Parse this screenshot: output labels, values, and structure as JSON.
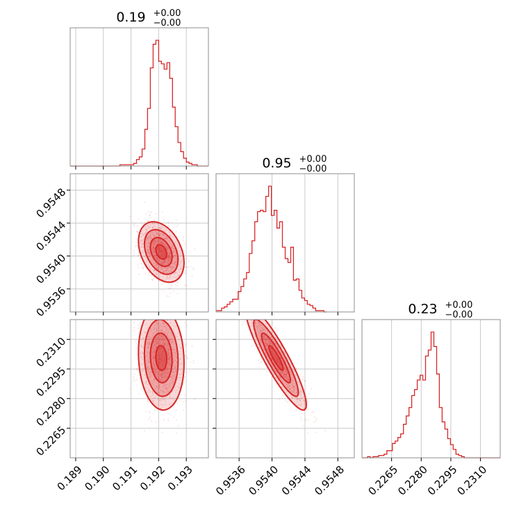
{
  "chart_data": {
    "type": "corner",
    "color": "#d62728",
    "parameters": [
      {
        "title_main": "0.19",
        "title_plus": "+0.00",
        "title_minus": "−0.00",
        "range": [
          0.1888,
          0.1938
        ],
        "ticks": [
          "0.189",
          "0.190",
          "0.191",
          "0.192",
          "0.193"
        ],
        "mean": 0.1921,
        "sd": 0.0004,
        "hist_start": 0.1888,
        "hist_step": 0.0001,
        "hist": [
          0,
          0,
          0,
          0,
          0,
          0,
          0,
          0,
          0,
          0,
          0,
          0,
          0,
          0,
          0,
          0,
          0,
          0,
          1,
          1,
          1,
          1,
          1,
          2,
          5,
          7,
          13,
          28,
          44,
          75,
          93,
          96,
          80,
          78,
          74,
          79,
          67,
          45,
          30,
          18,
          11,
          6,
          3,
          2,
          1,
          1,
          0,
          0,
          0,
          0
        ]
      },
      {
        "title_main": "0.95",
        "title_plus": "+0.00",
        "title_minus": "−0.00",
        "range": [
          0.95332,
          0.955
        ],
        "ticks": [
          "0.9536",
          "0.9540",
          "0.9544",
          "0.9548"
        ],
        "mean": 0.95405,
        "sd": 0.00018,
        "hist_start": 0.95332,
        "hist_step": 3.36e-05,
        "hist": [
          1,
          1,
          3,
          4,
          6,
          8,
          10,
          10,
          16,
          20,
          26,
          31,
          46,
          56,
          71,
          79,
          80,
          79,
          91,
          99,
          76,
          80,
          66,
          71,
          51,
          42,
          39,
          51,
          25,
          26,
          17,
          11,
          9,
          6,
          5,
          3,
          1,
          1,
          1,
          0
        ]
      },
      {
        "title_main": "0.23",
        "title_plus": "+0.00",
        "title_minus": "−0.00",
        "range": [
          0.225,
          0.232
        ],
        "ticks": [
          "0.2265",
          "0.2280",
          "0.2295",
          "0.2310"
        ],
        "mean": 0.23004,
        "sd": 0.0012,
        "hist_start": 0.225,
        "hist_step": 0.00014,
        "hist": [
          0,
          0,
          1,
          0,
          1,
          1,
          2,
          2,
          3,
          6,
          6,
          12,
          14,
          17,
          20,
          28,
          35,
          42,
          52,
          57,
          65,
          69,
          65,
          85,
          90,
          105,
          93,
          70,
          42,
          30,
          24,
          16,
          11,
          7,
          3,
          2,
          1,
          0,
          0,
          0,
          0,
          0,
          0,
          0,
          0,
          0,
          0,
          0,
          0,
          0
        ]
      }
    ],
    "rho_01": -0.35,
    "rho_02": -0.1,
    "rho_12": -0.97,
    "sample_count": 1200,
    "grid": true
  }
}
